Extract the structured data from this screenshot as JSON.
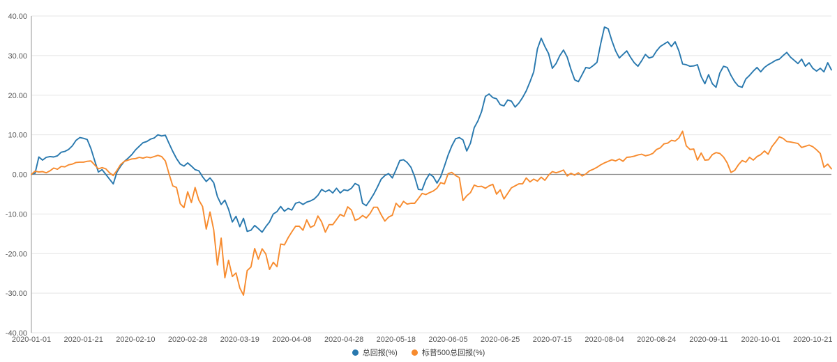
{
  "chart_data": {
    "type": "line",
    "title": "",
    "xlabel": "",
    "ylabel": "",
    "ylim": [
      -40,
      40
    ],
    "grid": true,
    "zero_baseline": true,
    "legend_position": "bottom-center",
    "background_color": "#ffffff",
    "grid_color": "#e5e5e5",
    "zero_line_color": "#898989",
    "axis_line_color": "#b9b9b9",
    "tick_label_color": "#595959",
    "y_tick_labels": [
      "40.00",
      "30.00",
      "20.00",
      "10.00",
      "0.00",
      "-10.00",
      "-20.00",
      "-30.00",
      "-40.00"
    ],
    "y_tick_values": [
      40,
      30,
      20,
      10,
      0,
      -10,
      -20,
      -30,
      -40
    ],
    "x_tick_labels": [
      "2020-01-01",
      "2020-01-21",
      "2020-02-10",
      "2020-02-28",
      "2020-03-19",
      "2020-04-08",
      "2020-04-28",
      "2020-05-18",
      "2020-06-05",
      "2020-06-25",
      "2020-07-15",
      "2020-08-04",
      "2020-08-24",
      "2020-09-11",
      "2020-10-01",
      "2020-10-21"
    ],
    "points_per_x_tick": 14,
    "series": [
      {
        "name": "总回报(%)",
        "color": "#2878ae",
        "values": [
          0.0,
          0.3,
          4.4,
          3.6,
          4.3,
          4.5,
          4.4,
          4.7,
          5.6,
          5.8,
          6.3,
          7.2,
          8.6,
          9.3,
          9.1,
          8.8,
          6.5,
          3.5,
          0.6,
          1.2,
          0.0,
          -1.2,
          -2.4,
          0.6,
          2.1,
          3.3,
          4.1,
          5.0,
          6.2,
          7.1,
          8.0,
          8.3,
          8.9,
          9.2,
          10.0,
          9.7,
          9.9,
          7.8,
          5.8,
          4.0,
          2.6,
          2.1,
          2.9,
          2.1,
          1.2,
          0.9,
          -0.6,
          -1.8,
          -0.9,
          -2.1,
          -5.6,
          -7.6,
          -6.5,
          -8.8,
          -12.0,
          -10.6,
          -13.2,
          -11.1,
          -14.4,
          -14.1,
          -12.9,
          -13.7,
          -14.6,
          -13.2,
          -12.0,
          -10.0,
          -9.4,
          -8.1,
          -9.3,
          -8.6,
          -9.0,
          -7.3,
          -7.0,
          -7.6,
          -7.0,
          -6.7,
          -6.2,
          -5.3,
          -3.8,
          -4.4,
          -3.9,
          -4.7,
          -3.5,
          -4.7,
          -3.9,
          -4.1,
          -3.5,
          -2.3,
          -2.8,
          -7.3,
          -7.9,
          -6.5,
          -5.0,
          -3.2,
          -1.2,
          -0.3,
          0.2,
          -0.9,
          1.2,
          3.5,
          3.7,
          3.0,
          1.8,
          -0.6,
          -3.8,
          -3.9,
          -1.4,
          0.1,
          -0.6,
          -2.2,
          -0.6,
          2.1,
          4.9,
          7.2,
          9.0,
          9.3,
          8.7,
          5.9,
          7.9,
          11.8,
          13.5,
          15.9,
          19.7,
          20.3,
          19.4,
          19.1,
          17.6,
          17.3,
          18.8,
          18.5,
          17.0,
          18.0,
          19.4,
          21.1,
          23.4,
          25.9,
          31.7,
          34.4,
          32.3,
          30.5,
          26.8,
          28.0,
          30.0,
          31.4,
          29.6,
          26.5,
          23.9,
          23.4,
          25.2,
          27.0,
          26.8,
          27.5,
          28.3,
          33.0,
          37.2,
          36.8,
          33.8,
          31.2,
          29.4,
          30.3,
          31.2,
          29.6,
          28.2,
          27.3,
          28.7,
          30.3,
          29.4,
          29.7,
          31.2,
          32.3,
          32.9,
          33.5,
          32.3,
          33.5,
          31.2,
          27.9,
          27.7,
          27.3,
          27.4,
          27.7,
          24.7,
          22.9,
          25.2,
          22.9,
          22.0,
          25.6,
          27.3,
          27.0,
          25.0,
          23.4,
          22.3,
          22.0,
          24.1,
          25.0,
          26.1,
          27.0,
          25.9,
          27.0,
          27.7,
          28.2,
          28.8,
          29.1,
          30.0,
          30.8,
          29.6,
          28.8,
          28.0,
          29.1,
          27.3,
          28.2,
          26.8,
          26.1,
          26.8,
          25.9,
          28.2,
          26.4
        ]
      },
      {
        "name": "标普500总回报(%)",
        "color": "#f78b2e",
        "values": [
          0.0,
          0.8,
          0.6,
          0.7,
          0.4,
          0.9,
          1.6,
          1.3,
          2.0,
          1.9,
          2.4,
          2.6,
          3.0,
          3.1,
          3.1,
          3.3,
          3.4,
          2.4,
          1.4,
          1.7,
          1.4,
          0.4,
          -0.3,
          1.0,
          2.5,
          3.3,
          3.6,
          3.9,
          4.0,
          4.3,
          4.1,
          4.4,
          4.2,
          4.5,
          4.8,
          4.5,
          3.4,
          0.1,
          -2.9,
          -3.3,
          -7.4,
          -8.4,
          -4.4,
          -7.1,
          -3.3,
          -6.5,
          -8.1,
          -13.8,
          -9.5,
          -14.0,
          -22.9,
          -16.1,
          -26.1,
          -21.7,
          -25.8,
          -24.9,
          -28.7,
          -30.5,
          -24.3,
          -23.4,
          -18.7,
          -21.4,
          -18.8,
          -20.1,
          -24.0,
          -22.2,
          -23.3,
          -17.6,
          -17.8,
          -16.0,
          -14.5,
          -13.1,
          -13.1,
          -14.1,
          -11.5,
          -13.4,
          -12.9,
          -10.5,
          -12.0,
          -14.6,
          -12.7,
          -12.7,
          -11.4,
          -10.1,
          -10.6,
          -8.2,
          -9.0,
          -11.6,
          -11.2,
          -10.4,
          -11.0,
          -9.9,
          -8.3,
          -8.3,
          -10.2,
          -11.8,
          -10.8,
          -10.3,
          -7.3,
          -8.3,
          -6.8,
          -7.5,
          -7.3,
          -7.3,
          -6.1,
          -4.8,
          -5.1,
          -4.6,
          -4.2,
          -3.5,
          -2.1,
          -2.4,
          0.2,
          0.5,
          -0.3,
          -0.8,
          -6.6,
          -5.4,
          -4.6,
          -2.7,
          -3.1,
          -3.0,
          -3.5,
          -2.9,
          -2.5,
          -5.0,
          -3.9,
          -6.2,
          -4.8,
          -3.4,
          -2.9,
          -2.4,
          -2.4,
          -0.9,
          -1.9,
          -1.2,
          -1.7,
          -0.7,
          -1.5,
          -0.2,
          0.7,
          0.4,
          0.7,
          1.1,
          -0.4,
          0.3,
          -0.2,
          0.4,
          -0.4,
          0.1,
          0.9,
          1.3,
          1.8,
          2.4,
          2.9,
          3.3,
          3.7,
          3.4,
          3.9,
          3.3,
          4.3,
          4.4,
          4.6,
          4.9,
          5.1,
          4.7,
          4.9,
          5.3,
          6.3,
          6.7,
          7.7,
          7.9,
          8.6,
          8.4,
          9.2,
          10.9,
          7.2,
          6.3,
          6.4,
          3.6,
          5.4,
          3.6,
          3.7,
          5.0,
          5.5,
          5.3,
          4.4,
          2.9,
          0.5,
          1.0,
          2.4,
          3.5,
          3.1,
          4.3,
          3.6,
          4.5,
          5.0,
          5.9,
          5.1,
          7.0,
          8.2,
          9.5,
          9.1,
          8.3,
          8.2,
          8.0,
          7.8,
          6.8,
          7.1,
          7.4,
          7.0,
          6.2,
          5.3,
          1.8,
          2.6,
          1.4
        ]
      }
    ]
  },
  "legend": {
    "items": [
      {
        "label": "总回报(%)",
        "color": "#2878ae"
      },
      {
        "label": "标普500总回报(%)",
        "color": "#f78b2e"
      }
    ]
  }
}
